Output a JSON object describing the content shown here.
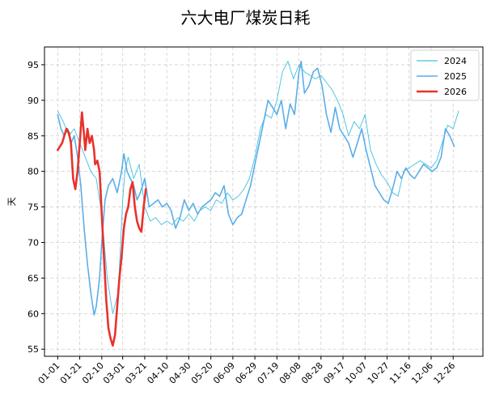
{
  "chart_data": {
    "type": "line",
    "title": "六大电厂煤炭日耗",
    "xlabel": "",
    "ylabel": "天",
    "ylim": [
      54,
      97.5
    ],
    "yticks": [
      55,
      60,
      65,
      70,
      75,
      80,
      85,
      90,
      95
    ],
    "xlim_day": [
      -12,
      386
    ],
    "xticks": [
      "01-01",
      "01-21",
      "02-10",
      "03-01",
      "03-21",
      "04-10",
      "04-30",
      "05-20",
      "06-09",
      "06-29",
      "07-19",
      "08-08",
      "08-28",
      "09-17",
      "10-07",
      "10-27",
      "11-16",
      "12-06",
      "12-26"
    ],
    "grid": true,
    "legend_position": "top-right",
    "series": [
      {
        "name": "2024",
        "color": "#40c0e0",
        "stroke_width": 0.9,
        "points": [
          [
            "01-01",
            88.5
          ],
          [
            "01-06",
            87
          ],
          [
            "01-11",
            85
          ],
          [
            "01-16",
            86
          ],
          [
            "01-21",
            84
          ],
          [
            "01-26",
            82
          ],
          [
            "01-31",
            80
          ],
          [
            "02-05",
            79
          ],
          [
            "02-10",
            74
          ],
          [
            "02-15",
            65
          ],
          [
            "02-20",
            60
          ],
          [
            "02-25",
            63
          ],
          [
            "03-01",
            76
          ],
          [
            "03-03",
            80
          ],
          [
            "03-06",
            82
          ],
          [
            "03-11",
            79
          ],
          [
            "03-16",
            81
          ],
          [
            "03-21",
            75
          ],
          [
            "03-26",
            73
          ],
          [
            "03-31",
            73.5
          ],
          [
            "04-05",
            72.5
          ],
          [
            "04-10",
            73
          ],
          [
            "04-15",
            72.5
          ],
          [
            "04-20",
            73.5
          ],
          [
            "04-25",
            73
          ],
          [
            "04-30",
            74
          ],
          [
            "05-05",
            73
          ],
          [
            "05-10",
            74.5
          ],
          [
            "05-15",
            75
          ],
          [
            "05-20",
            74.5
          ],
          [
            "05-25",
            76
          ],
          [
            "05-30",
            75.5
          ],
          [
            "06-04",
            77
          ],
          [
            "06-09",
            76
          ],
          [
            "06-14",
            76.5
          ],
          [
            "06-19",
            77.5
          ],
          [
            "06-24",
            79
          ],
          [
            "06-29",
            82
          ],
          [
            "07-04",
            86
          ],
          [
            "07-09",
            88
          ],
          [
            "07-14",
            87.5
          ],
          [
            "07-19",
            90
          ],
          [
            "07-24",
            94
          ],
          [
            "07-29",
            95.5
          ],
          [
            "08-03",
            93
          ],
          [
            "08-08",
            95
          ],
          [
            "08-13",
            94
          ],
          [
            "08-18",
            93.5
          ],
          [
            "08-23",
            93
          ],
          [
            "08-28",
            93.5
          ],
          [
            "09-02",
            92.5
          ],
          [
            "09-07",
            91.5
          ],
          [
            "09-12",
            90
          ],
          [
            "09-17",
            88
          ],
          [
            "09-22",
            85
          ],
          [
            "09-27",
            87
          ],
          [
            "10-02",
            86
          ],
          [
            "10-07",
            88
          ],
          [
            "10-12",
            83
          ],
          [
            "10-17",
            81
          ],
          [
            "10-22",
            79.5
          ],
          [
            "10-27",
            78.5
          ],
          [
            "11-01",
            77
          ],
          [
            "11-06",
            76.5
          ],
          [
            "11-11",
            80
          ],
          [
            "11-16",
            80.5
          ],
          [
            "11-21",
            81
          ],
          [
            "11-26",
            81.5
          ],
          [
            "12-01",
            81
          ],
          [
            "12-06",
            80.5
          ],
          [
            "12-11",
            81.5
          ],
          [
            "12-16",
            84
          ],
          [
            "12-21",
            86.5
          ],
          [
            "12-26",
            86
          ],
          [
            "12-31",
            88.5
          ]
        ]
      },
      {
        "name": "2025",
        "color": "#5aaee8",
        "stroke_width": 1.6,
        "points": [
          [
            "01-01",
            88
          ],
          [
            "01-04",
            86
          ],
          [
            "01-07",
            85
          ],
          [
            "01-10",
            86
          ],
          [
            "01-13",
            84
          ],
          [
            "01-16",
            85
          ],
          [
            "01-19",
            82
          ],
          [
            "01-22",
            78
          ],
          [
            "01-25",
            72
          ],
          [
            "01-28",
            67
          ],
          [
            "01-31",
            63
          ],
          [
            "02-03",
            59.8
          ],
          [
            "02-05",
            61
          ],
          [
            "02-08",
            65
          ],
          [
            "02-10",
            70
          ],
          [
            "02-13",
            76
          ],
          [
            "02-16",
            78
          ],
          [
            "02-20",
            79
          ],
          [
            "02-24",
            77
          ],
          [
            "02-28",
            80
          ],
          [
            "03-02",
            82.5
          ],
          [
            "03-05",
            80
          ],
          [
            "03-08",
            79
          ],
          [
            "03-11",
            78
          ],
          [
            "03-14",
            76
          ],
          [
            "03-17",
            77
          ],
          [
            "03-21",
            79
          ],
          [
            "03-25",
            75
          ],
          [
            "03-29",
            75.5
          ],
          [
            "04-02",
            76
          ],
          [
            "04-06",
            75
          ],
          [
            "04-10",
            75.5
          ],
          [
            "04-14",
            74.5
          ],
          [
            "04-18",
            72
          ],
          [
            "04-22",
            73.5
          ],
          [
            "04-26",
            76
          ],
          [
            "04-30",
            74.5
          ],
          [
            "05-04",
            75.5
          ],
          [
            "05-08",
            74
          ],
          [
            "05-12",
            75
          ],
          [
            "05-16",
            75.5
          ],
          [
            "05-20",
            76
          ],
          [
            "05-24",
            77
          ],
          [
            "05-28",
            76.5
          ],
          [
            "06-01",
            78
          ],
          [
            "06-05",
            74
          ],
          [
            "06-09",
            72.5
          ],
          [
            "06-13",
            73.5
          ],
          [
            "06-17",
            74
          ],
          [
            "06-21",
            76
          ],
          [
            "06-25",
            78
          ],
          [
            "06-29",
            81
          ],
          [
            "07-03",
            84
          ],
          [
            "07-07",
            87
          ],
          [
            "07-11",
            90
          ],
          [
            "07-15",
            89
          ],
          [
            "07-19",
            88
          ],
          [
            "07-23",
            90
          ],
          [
            "07-27",
            86
          ],
          [
            "07-31",
            89.5
          ],
          [
            "08-04",
            88
          ],
          [
            "08-08",
            94
          ],
          [
            "08-10",
            95.5
          ],
          [
            "08-13",
            91
          ],
          [
            "08-17",
            92
          ],
          [
            "08-21",
            94
          ],
          [
            "08-25",
            94.5
          ],
          [
            "08-29",
            92
          ],
          [
            "09-02",
            88
          ],
          [
            "09-06",
            85.5
          ],
          [
            "09-10",
            89
          ],
          [
            "09-14",
            86
          ],
          [
            "09-18",
            85
          ],
          [
            "09-22",
            84
          ],
          [
            "09-26",
            82
          ],
          [
            "09-30",
            84
          ],
          [
            "10-04",
            86
          ],
          [
            "10-08",
            83
          ],
          [
            "10-12",
            80.5
          ],
          [
            "10-16",
            78
          ],
          [
            "10-20",
            77
          ],
          [
            "10-24",
            76
          ],
          [
            "10-28",
            75.5
          ],
          [
            "11-01",
            77.5
          ],
          [
            "11-05",
            80
          ],
          [
            "11-09",
            79
          ],
          [
            "11-13",
            80.5
          ],
          [
            "11-17",
            79.5
          ],
          [
            "11-21",
            79
          ],
          [
            "11-25",
            80
          ],
          [
            "11-29",
            81
          ],
          [
            "12-03",
            80.5
          ],
          [
            "12-07",
            80
          ],
          [
            "12-11",
            80.5
          ],
          [
            "12-15",
            82
          ],
          [
            "12-19",
            86
          ],
          [
            "12-23",
            85
          ],
          [
            "12-27",
            83.5
          ]
        ]
      },
      {
        "name": "2026",
        "color": "#e8322c",
        "stroke_width": 2.6,
        "points": [
          [
            "01-01",
            83
          ],
          [
            "01-03",
            83.5
          ],
          [
            "01-05",
            84
          ],
          [
            "01-07",
            85
          ],
          [
            "01-09",
            86
          ],
          [
            "01-11",
            85.5
          ],
          [
            "01-13",
            84
          ],
          [
            "01-15",
            79
          ],
          [
            "01-17",
            77.5
          ],
          [
            "01-19",
            80
          ],
          [
            "01-21",
            84
          ],
          [
            "01-23",
            88.3
          ],
          [
            "01-25",
            85
          ],
          [
            "01-26",
            83
          ],
          [
            "01-28",
            86
          ],
          [
            "01-30",
            84
          ],
          [
            "02-01",
            85
          ],
          [
            "02-03",
            83
          ],
          [
            "02-04",
            81
          ],
          [
            "02-06",
            81.5
          ],
          [
            "02-08",
            80
          ],
          [
            "02-10",
            74
          ],
          [
            "02-12",
            68
          ],
          [
            "02-14",
            62
          ],
          [
            "02-16",
            58
          ],
          [
            "02-18",
            56.5
          ],
          [
            "02-20",
            55.5
          ],
          [
            "02-22",
            57
          ],
          [
            "02-24",
            61
          ],
          [
            "02-26",
            65
          ],
          [
            "02-28",
            68
          ],
          [
            "03-02",
            72
          ],
          [
            "03-04",
            74
          ],
          [
            "03-06",
            75
          ],
          [
            "03-08",
            77.5
          ],
          [
            "03-10",
            78.5
          ],
          [
            "03-12",
            75
          ],
          [
            "03-14",
            73
          ],
          [
            "03-16",
            72
          ],
          [
            "03-18",
            71.5
          ],
          [
            "03-20",
            75
          ],
          [
            "03-22",
            77.5
          ]
        ]
      }
    ]
  }
}
